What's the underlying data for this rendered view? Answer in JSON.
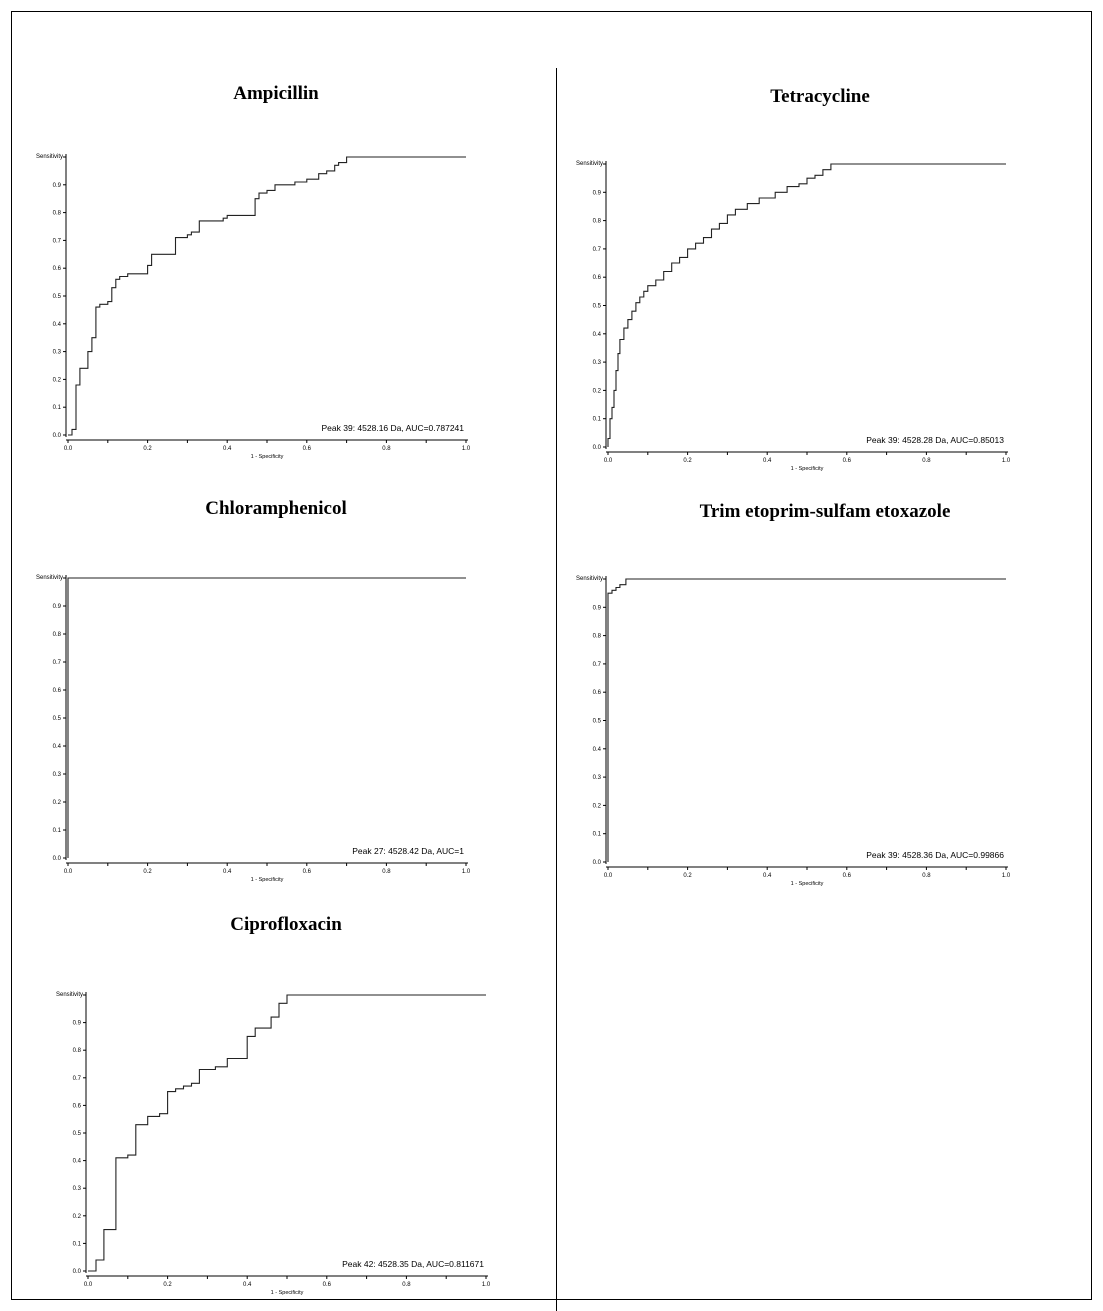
{
  "axis": {
    "ylabel": "Sensitivity",
    "xlabel": "1 - Specificity",
    "ticks": [
      "0.0",
      "0.1",
      "0.2",
      "0.3",
      "0.4",
      "0.5",
      "0.6",
      "0.7",
      "0.8",
      "0.9",
      "1.0"
    ],
    "xticks": [
      "0.0",
      "0.2",
      "0.4",
      "0.6",
      "0.8",
      "1.0"
    ]
  },
  "chart_data": [
    {
      "type": "line",
      "title": "Ampicillin",
      "xlabel": "1 - Specificity",
      "ylabel": "Sensitivity",
      "xlim": [
        0,
        1
      ],
      "ylim": [
        0,
        1
      ],
      "annotation": "Peak 39: 4528.16 Da, AUC=0.787241",
      "x": [
        0.0,
        0.01,
        0.01,
        0.02,
        0.02,
        0.03,
        0.03,
        0.05,
        0.05,
        0.06,
        0.06,
        0.07,
        0.07,
        0.08,
        0.08,
        0.1,
        0.1,
        0.11,
        0.11,
        0.12,
        0.12,
        0.13,
        0.13,
        0.15,
        0.15,
        0.2,
        0.2,
        0.21,
        0.21,
        0.27,
        0.27,
        0.3,
        0.3,
        0.31,
        0.31,
        0.33,
        0.33,
        0.39,
        0.39,
        0.4,
        0.4,
        0.47,
        0.47,
        0.48,
        0.48,
        0.5,
        0.5,
        0.52,
        0.52,
        0.57,
        0.57,
        0.6,
        0.6,
        0.63,
        0.63,
        0.65,
        0.65,
        0.67,
        0.67,
        0.68,
        0.68,
        0.7,
        0.7,
        1.0
      ],
      "y": [
        0.0,
        0.0,
        0.02,
        0.02,
        0.18,
        0.18,
        0.24,
        0.24,
        0.3,
        0.3,
        0.35,
        0.35,
        0.46,
        0.46,
        0.47,
        0.47,
        0.48,
        0.48,
        0.53,
        0.53,
        0.56,
        0.56,
        0.57,
        0.57,
        0.58,
        0.58,
        0.61,
        0.61,
        0.65,
        0.65,
        0.71,
        0.71,
        0.72,
        0.72,
        0.73,
        0.73,
        0.77,
        0.77,
        0.78,
        0.78,
        0.79,
        0.79,
        0.85,
        0.85,
        0.87,
        0.87,
        0.88,
        0.88,
        0.9,
        0.9,
        0.91,
        0.91,
        0.92,
        0.92,
        0.94,
        0.94,
        0.95,
        0.95,
        0.97,
        0.97,
        0.98,
        0.98,
        1.0,
        1.0
      ]
    },
    {
      "type": "line",
      "title": "Tetracycline",
      "xlabel": "1 - Specificity",
      "ylabel": "Sensitivity",
      "xlim": [
        0,
        1
      ],
      "ylim": [
        0,
        1
      ],
      "annotation": "Peak 39: 4528.28 Da, AUC=0.85013",
      "x": [
        0.0,
        0.0,
        0.005,
        0.005,
        0.01,
        0.01,
        0.015,
        0.015,
        0.02,
        0.02,
        0.025,
        0.025,
        0.03,
        0.03,
        0.04,
        0.04,
        0.05,
        0.05,
        0.06,
        0.06,
        0.07,
        0.07,
        0.08,
        0.08,
        0.09,
        0.09,
        0.1,
        0.1,
        0.12,
        0.12,
        0.14,
        0.14,
        0.16,
        0.16,
        0.18,
        0.18,
        0.2,
        0.2,
        0.22,
        0.22,
        0.24,
        0.24,
        0.26,
        0.26,
        0.28,
        0.28,
        0.3,
        0.3,
        0.32,
        0.32,
        0.35,
        0.35,
        0.38,
        0.38,
        0.42,
        0.42,
        0.45,
        0.45,
        0.48,
        0.48,
        0.5,
        0.5,
        0.52,
        0.52,
        0.54,
        0.54,
        0.56,
        0.56,
        1.0
      ],
      "y": [
        0.0,
        0.03,
        0.03,
        0.1,
        0.1,
        0.14,
        0.14,
        0.2,
        0.2,
        0.27,
        0.27,
        0.33,
        0.33,
        0.38,
        0.38,
        0.42,
        0.42,
        0.45,
        0.45,
        0.48,
        0.48,
        0.51,
        0.51,
        0.53,
        0.53,
        0.55,
        0.55,
        0.57,
        0.57,
        0.59,
        0.59,
        0.62,
        0.62,
        0.65,
        0.65,
        0.67,
        0.67,
        0.7,
        0.7,
        0.72,
        0.72,
        0.74,
        0.74,
        0.77,
        0.77,
        0.79,
        0.79,
        0.82,
        0.82,
        0.84,
        0.84,
        0.86,
        0.86,
        0.88,
        0.88,
        0.9,
        0.9,
        0.92,
        0.92,
        0.93,
        0.93,
        0.95,
        0.95,
        0.96,
        0.96,
        0.98,
        0.98,
        1.0,
        1.0
      ]
    },
    {
      "type": "line",
      "title": "Chloramphenicol",
      "xlabel": "1 - Specificity",
      "ylabel": "Sensitivity",
      "xlim": [
        0,
        1
      ],
      "ylim": [
        0,
        1
      ],
      "annotation": "Peak 27: 4528.42 Da, AUC=1",
      "x": [
        0.0,
        0.0,
        1.0
      ],
      "y": [
        0.0,
        1.0,
        1.0
      ]
    },
    {
      "type": "line",
      "title": "Trim etoprim-sulfam etoxazole",
      "xlabel": "1 - Specificity",
      "ylabel": "Sensitivity",
      "xlim": [
        0,
        1
      ],
      "ylim": [
        0,
        1
      ],
      "annotation": "Peak 39: 4528.36 Da, AUC=0.99866",
      "x": [
        0.0,
        0.0,
        0.01,
        0.01,
        0.02,
        0.02,
        0.03,
        0.03,
        0.045,
        0.045,
        1.0
      ],
      "y": [
        0.0,
        0.95,
        0.95,
        0.96,
        0.96,
        0.97,
        0.97,
        0.98,
        0.98,
        1.0,
        1.0
      ]
    },
    {
      "type": "line",
      "title": "Ciprofloxacin",
      "xlabel": "1 - Specificity",
      "ylabel": "Sensitivity",
      "xlim": [
        0,
        1
      ],
      "ylim": [
        0,
        1
      ],
      "annotation": "Peak 42: 4528.35 Da, AUC=0.811671",
      "x": [
        0.0,
        0.02,
        0.02,
        0.04,
        0.04,
        0.07,
        0.07,
        0.1,
        0.1,
        0.12,
        0.12,
        0.15,
        0.15,
        0.18,
        0.18,
        0.2,
        0.2,
        0.22,
        0.22,
        0.24,
        0.24,
        0.26,
        0.26,
        0.28,
        0.28,
        0.32,
        0.32,
        0.35,
        0.35,
        0.4,
        0.4,
        0.42,
        0.42,
        0.46,
        0.46,
        0.48,
        0.48,
        0.5,
        0.5,
        0.52,
        0.52,
        0.54,
        0.54,
        1.0
      ],
      "y": [
        0.0,
        0.0,
        0.04,
        0.04,
        0.15,
        0.15,
        0.41,
        0.41,
        0.42,
        0.42,
        0.53,
        0.53,
        0.56,
        0.56,
        0.57,
        0.57,
        0.65,
        0.65,
        0.66,
        0.66,
        0.67,
        0.67,
        0.68,
        0.68,
        0.73,
        0.73,
        0.74,
        0.74,
        0.77,
        0.77,
        0.85,
        0.85,
        0.88,
        0.88,
        0.92,
        0.92,
        0.97,
        0.97,
        1.0,
        1.0,
        1.0,
        1.0,
        1.0,
        1.0
      ]
    }
  ]
}
